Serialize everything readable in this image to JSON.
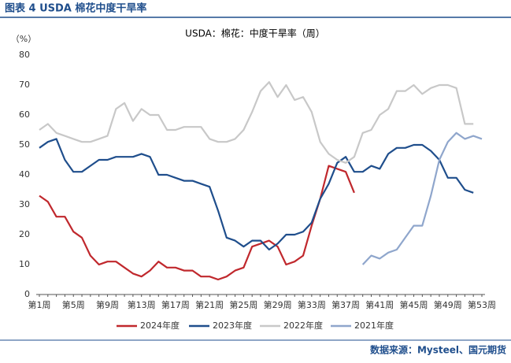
{
  "caption": "图表 4 USDA 棉花中度干旱率",
  "source": "数据来源：Mysteel、国元期货",
  "chart_data": {
    "type": "line",
    "title": "USDA：棉花：中度干旱率（周）",
    "y_unit": "（%）",
    "categories": [
      "第1周",
      null,
      null,
      null,
      "第5周",
      null,
      null,
      null,
      "第9周",
      null,
      null,
      null,
      "第13周",
      null,
      null,
      null,
      "第17周",
      null,
      null,
      null,
      "第21周",
      null,
      null,
      null,
      "第25周",
      null,
      null,
      null,
      "第29周",
      null,
      null,
      null,
      "第33周",
      null,
      null,
      null,
      "第37周",
      null,
      null,
      null,
      "第41周",
      null,
      null,
      null,
      "第45周",
      null,
      null,
      null,
      "第49周",
      null,
      null,
      null,
      "第53周"
    ],
    "ylim": [
      0,
      80
    ],
    "yticks": [
      0,
      10,
      20,
      30,
      40,
      50,
      60,
      70,
      80
    ],
    "grid": false,
    "legend": "bottom",
    "series": [
      {
        "name": "2024年度",
        "color": "#c0282d",
        "values": [
          33,
          31,
          26,
          26,
          21,
          19,
          13,
          10,
          11,
          11,
          9,
          7,
          6,
          8,
          11,
          9,
          9,
          8,
          8,
          6,
          6,
          5,
          6,
          8,
          9,
          16,
          17,
          18,
          16,
          10,
          11,
          13,
          23,
          32,
          43,
          42,
          41,
          34,
          null,
          null,
          null,
          null,
          null,
          null,
          null,
          null,
          null,
          null,
          null,
          null,
          null,
          null,
          null
        ]
      },
      {
        "name": "2023年度",
        "color": "#1f4e8c",
        "values": [
          49,
          51,
          52,
          45,
          41,
          41,
          43,
          45,
          45,
          46,
          46,
          46,
          47,
          46,
          40,
          40,
          39,
          38,
          38,
          37,
          36,
          28,
          19,
          18,
          16,
          18,
          18,
          15,
          17,
          20,
          20,
          21,
          24,
          32,
          37,
          44,
          46,
          41,
          41,
          43,
          42,
          47,
          49,
          49,
          50,
          50,
          48,
          45,
          39,
          39,
          35,
          34,
          null
        ]
      },
      {
        "name": "2022年度",
        "color": "#c8c8c8",
        "values": [
          55,
          57,
          54,
          53,
          52,
          51,
          51,
          52,
          53,
          62,
          64,
          58,
          62,
          60,
          60,
          55,
          55,
          56,
          56,
          56,
          52,
          51,
          51,
          52,
          55,
          61,
          68,
          71,
          66,
          70,
          65,
          66,
          61,
          51,
          47,
          45,
          44,
          46,
          54,
          55,
          60,
          62,
          68,
          68,
          70,
          67,
          69,
          70,
          70,
          69,
          57,
          57,
          null
        ]
      },
      {
        "name": "2021年度",
        "color": "#8fa6cc",
        "values": [
          null,
          null,
          null,
          null,
          null,
          null,
          null,
          null,
          null,
          null,
          null,
          null,
          null,
          null,
          null,
          null,
          null,
          null,
          null,
          null,
          null,
          null,
          null,
          null,
          null,
          null,
          null,
          null,
          null,
          null,
          null,
          null,
          null,
          null,
          null,
          null,
          null,
          null,
          10,
          13,
          12,
          14,
          15,
          19,
          23,
          23,
          33,
          45,
          51,
          54,
          52,
          53,
          52
        ]
      }
    ]
  }
}
